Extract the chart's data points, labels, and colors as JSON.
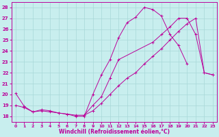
{
  "bg_color": "#c8eeee",
  "grid_color": "#a8d8d8",
  "line_color": "#bb0099",
  "xlabel": "Windchill (Refroidissement éolien,°C)",
  "xlim": [
    -0.5,
    23.5
  ],
  "ylim": [
    17.5,
    28.5
  ],
  "xticks": [
    0,
    1,
    2,
    3,
    4,
    5,
    6,
    7,
    8,
    9,
    10,
    11,
    12,
    13,
    14,
    15,
    16,
    17,
    18,
    19,
    20,
    21,
    22,
    23
  ],
  "yticks": [
    18,
    19,
    20,
    21,
    22,
    23,
    24,
    25,
    26,
    27,
    28
  ],
  "curve1_x": [
    0,
    1,
    2,
    3,
    4,
    5,
    6,
    7,
    8,
    9,
    10,
    11,
    12,
    13,
    14,
    15,
    16,
    17,
    18,
    19,
    20
  ],
  "curve1_y": [
    20.1,
    18.9,
    18.4,
    18.6,
    18.5,
    18.3,
    18.2,
    18.0,
    18.0,
    20.0,
    21.8,
    23.2,
    25.2,
    26.6,
    27.1,
    28.0,
    27.8,
    27.2,
    25.5,
    24.5,
    22.8
  ],
  "curve2_x": [
    0,
    1,
    2,
    3,
    4,
    5,
    6,
    7,
    8,
    9,
    10,
    11,
    12,
    13,
    14,
    15,
    16,
    17,
    18,
    19,
    20,
    21,
    22,
    23
  ],
  "curve2_y": [
    19.0,
    18.8,
    18.4,
    18.5,
    18.4,
    18.3,
    18.2,
    18.1,
    18.1,
    18.5,
    19.2,
    20.0,
    20.8,
    21.5,
    22.0,
    22.8,
    23.5,
    24.2,
    25.0,
    25.8,
    26.5,
    27.0,
    22.0,
    21.8
  ],
  "curve3_x": [
    8,
    9,
    10,
    11,
    12,
    16,
    17,
    18,
    19,
    20,
    21,
    22,
    23
  ],
  "curve3_y": [
    18.1,
    19.0,
    19.8,
    21.5,
    23.2,
    24.8,
    25.5,
    26.2,
    27.0,
    27.0,
    25.5,
    22.0,
    21.8
  ]
}
